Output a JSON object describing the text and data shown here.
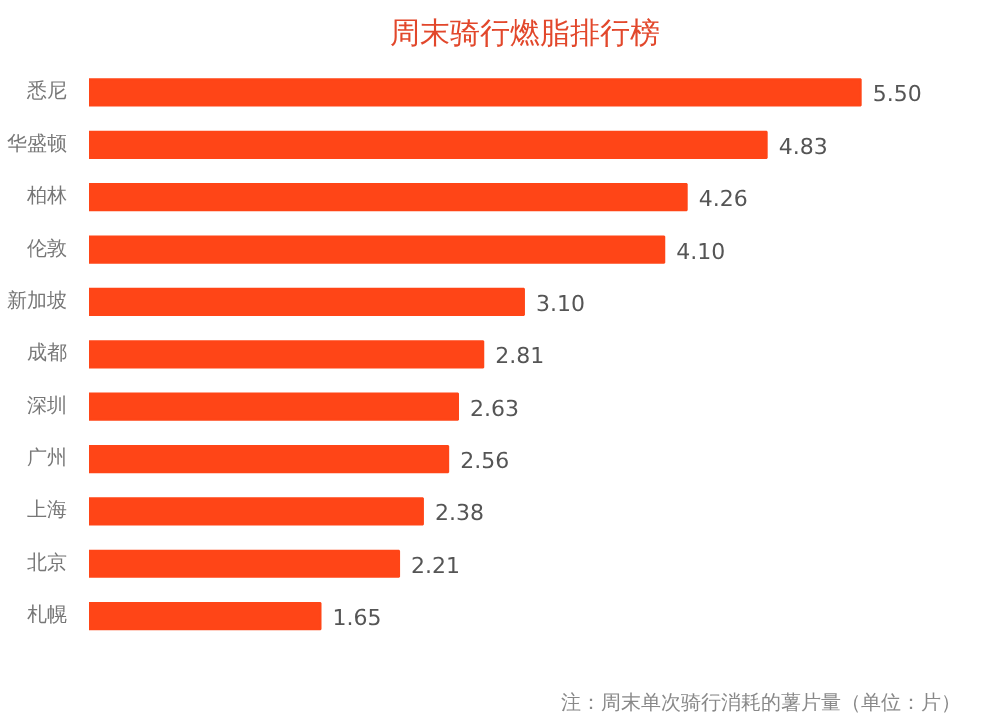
{
  "chart_data": {
    "type": "bar",
    "orientation": "horizontal",
    "title": "周末骑行燃脂排行榜",
    "categories": [
      "悉尼",
      "华盛顿",
      "柏林",
      "伦敦",
      "新加坡",
      "成都",
      "深圳",
      "广州",
      "上海",
      "北京",
      "札幌"
    ],
    "values": [
      5.5,
      4.83,
      4.26,
      4.1,
      3.1,
      2.81,
      2.63,
      2.56,
      2.38,
      2.21,
      1.65
    ],
    "color": "#ff4517",
    "value_labels": [
      "5.50",
      "4.83",
      "4.26",
      "4.10",
      "3.10",
      "2.81",
      "2.63",
      "2.56",
      "2.38",
      "2.21",
      "1.65"
    ],
    "annotations": [
      "注：周末单次骑行消耗的薯片量（单位：片）"
    ]
  }
}
